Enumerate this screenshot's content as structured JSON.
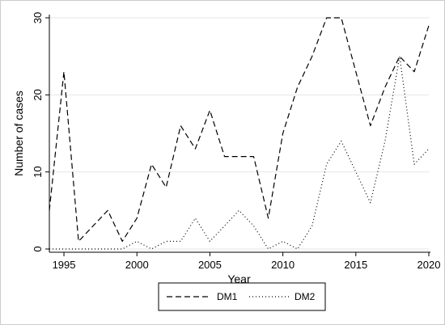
{
  "chart_data": {
    "type": "line",
    "xlabel": "Year",
    "ylabel": "Number of cases",
    "xlim": [
      1994,
      2020
    ],
    "ylim": [
      0,
      30
    ],
    "x_ticks": [
      1995,
      2000,
      2005,
      2010,
      2015,
      2020
    ],
    "y_ticks": [
      0,
      10,
      20,
      30
    ],
    "grid": "horizontal",
    "legend_position": "bottom",
    "x": [
      1994,
      1995,
      1996,
      1997,
      1998,
      1999,
      2000,
      2001,
      2002,
      2003,
      2004,
      2005,
      2006,
      2007,
      2008,
      2009,
      2010,
      2011,
      2012,
      2013,
      2014,
      2015,
      2016,
      2017,
      2018,
      2019,
      2020
    ],
    "series": [
      {
        "name": "DM1",
        "style": "dashed",
        "color": "#000000",
        "values": [
          5,
          23,
          1,
          3,
          5,
          1,
          4,
          11,
          8,
          16,
          13,
          18,
          12,
          12,
          12,
          4,
          15,
          21,
          25,
          30,
          30,
          23,
          16,
          21,
          25,
          23,
          29
        ]
      },
      {
        "name": "DM2",
        "style": "dotted",
        "color": "#000000",
        "values": [
          0,
          0,
          0,
          0,
          0,
          0,
          1,
          0,
          1,
          1,
          4,
          1,
          3,
          5,
          3,
          0,
          1,
          0,
          3,
          11,
          14,
          10,
          6,
          14,
          25,
          11,
          13
        ]
      }
    ]
  }
}
